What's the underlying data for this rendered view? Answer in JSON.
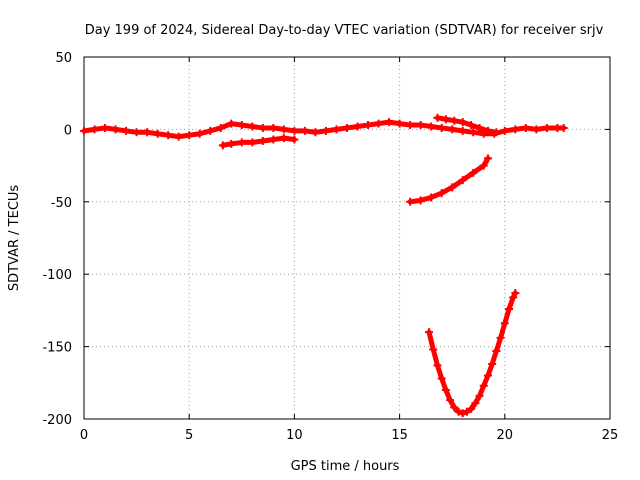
{
  "chart_data": {
    "type": "scatter",
    "title": "Day 199 of 2024, Sidereal Day-to-day VTEC variation (SDTVAR) for receiver srjv",
    "xlabel": "GPS time / hours",
    "ylabel": "SDTVAR / TECUs",
    "xlim": [
      0,
      25
    ],
    "ylim": [
      -200,
      50
    ],
    "xticks": [
      0,
      5,
      10,
      15,
      20,
      25
    ],
    "yticks": [
      -200,
      -150,
      -100,
      -50,
      0,
      50
    ],
    "grid": true,
    "legend": "none",
    "series_color": "#ff0000",
    "series": [
      {
        "x": [
          0.0,
          0.5,
          1.0,
          1.5,
          2.0,
          2.5,
          3.0,
          3.5,
          4.0,
          4.5,
          5.0,
          5.5,
          6.0,
          6.5,
          7.0,
          7.5,
          8.0,
          8.5,
          9.0,
          9.5,
          10.0,
          10.5,
          11.0,
          11.5,
          12.0,
          12.5,
          13.0,
          13.5,
          14.0,
          14.5,
          15.0,
          15.5,
          16.0,
          16.5,
          17.0,
          17.5,
          18.0,
          18.5,
          19.0,
          19.5,
          20.0,
          20.5,
          21.0,
          21.5,
          22.0,
          22.5,
          22.8
        ],
        "y": [
          -1,
          0,
          1,
          0,
          -1,
          -2,
          -2,
          -3,
          -4,
          -5,
          -4,
          -3,
          -1,
          1,
          4,
          3,
          2,
          1,
          1,
          0,
          -1,
          -1,
          -2,
          -1,
          0,
          1,
          2,
          3,
          4,
          5,
          4,
          3,
          3,
          2,
          1,
          0,
          -1,
          -2,
          -3,
          -3,
          -1,
          0,
          1,
          0,
          1,
          1,
          1
        ]
      },
      {
        "x": [
          6.6,
          7.0,
          7.5,
          8.0,
          8.5,
          9.0,
          9.5,
          10.0
        ],
        "y": [
          -11,
          -10,
          -9,
          -9,
          -8,
          -7,
          -6,
          -7
        ]
      },
      {
        "x": [
          16.8,
          17.2,
          17.6,
          18.0,
          18.4,
          18.8,
          19.2,
          19.6
        ],
        "y": [
          8,
          7,
          6,
          5,
          3,
          1,
          -1,
          -2
        ]
      },
      {
        "x": [
          15.5,
          16.0,
          16.5,
          17.0,
          17.5,
          18.0,
          18.5,
          19.0,
          19.2
        ],
        "y": [
          -50,
          -49,
          -47,
          -44,
          -40,
          -35,
          -30,
          -25,
          -20
        ]
      },
      {
        "x": [
          16.4,
          16.6,
          16.8,
          17.0,
          17.2,
          17.4,
          17.6,
          17.8,
          18.0,
          18.2,
          18.4,
          18.6,
          18.8,
          19.0,
          19.2,
          19.4,
          19.6,
          19.8,
          20.0,
          20.2,
          20.4,
          20.5
        ],
        "y": [
          -140,
          -152,
          -163,
          -172,
          -180,
          -187,
          -192,
          -195,
          -196,
          -195,
          -193,
          -189,
          -184,
          -177,
          -170,
          -162,
          -153,
          -144,
          -134,
          -124,
          -116,
          -113
        ]
      }
    ]
  }
}
